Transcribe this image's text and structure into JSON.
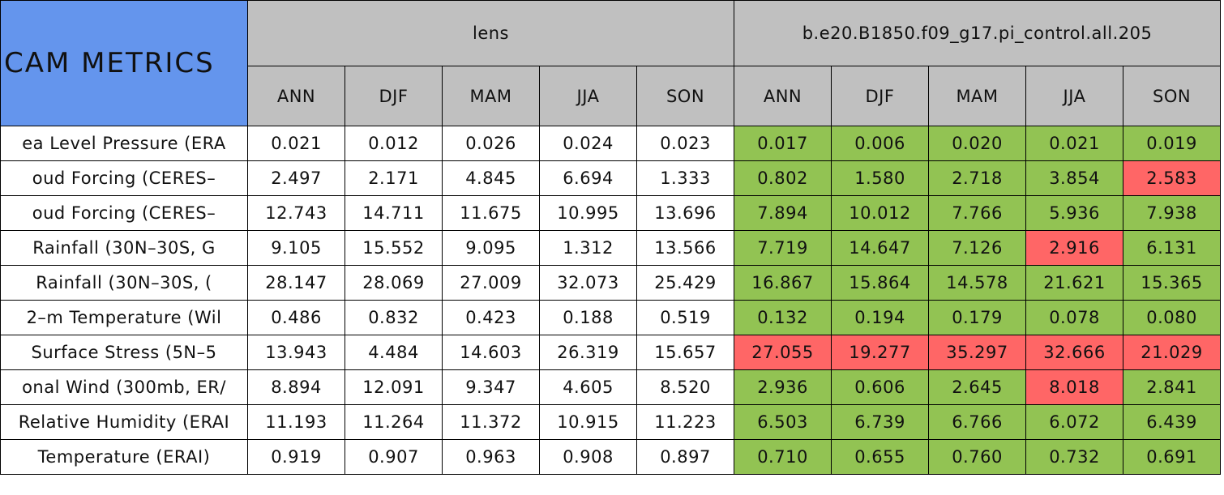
{
  "header": {
    "title": "CAM METRICS",
    "groups": [
      "lens",
      "b.e20.B1850.f09_g17.pi_control.all.205"
    ],
    "seasons": [
      "ANN",
      "DJF",
      "MAM",
      "JJA",
      "SON"
    ]
  },
  "colors": {
    "title_bg": "#6495ed",
    "header_bg": "#c0c0c0",
    "better": "#92c353",
    "worse": "#ff6666",
    "plain": "#ffffff"
  },
  "table": {
    "rows": [
      {
        "label": "ea Level Pressure (ERA",
        "lens": [
          "0.021",
          "0.012",
          "0.026",
          "0.024",
          "0.023"
        ],
        "control": [
          "0.017",
          "0.006",
          "0.020",
          "0.021",
          "0.019"
        ],
        "status": [
          "better",
          "better",
          "better",
          "better",
          "better"
        ]
      },
      {
        "label": "oud Forcing (CERES–",
        "lens": [
          "2.497",
          "2.171",
          "4.845",
          "6.694",
          "1.333"
        ],
        "control": [
          "0.802",
          "1.580",
          "2.718",
          "3.854",
          "2.583"
        ],
        "status": [
          "better",
          "better",
          "better",
          "better",
          "worse"
        ]
      },
      {
        "label": "oud Forcing (CERES–",
        "lens": [
          "12.743",
          "14.711",
          "11.675",
          "10.995",
          "13.696"
        ],
        "control": [
          "7.894",
          "10.012",
          "7.766",
          "5.936",
          "7.938"
        ],
        "status": [
          "better",
          "better",
          "better",
          "better",
          "better"
        ]
      },
      {
        "label": "Rainfall (30N–30S, G",
        "lens": [
          "9.105",
          "15.552",
          "9.095",
          "1.312",
          "13.566"
        ],
        "control": [
          "7.719",
          "14.647",
          "7.126",
          "2.916",
          "6.131"
        ],
        "status": [
          "better",
          "better",
          "better",
          "worse",
          "better"
        ]
      },
      {
        "label": "Rainfall (30N–30S, (",
        "lens": [
          "28.147",
          "28.069",
          "27.009",
          "32.073",
          "25.429"
        ],
        "control": [
          "16.867",
          "15.864",
          "14.578",
          "21.621",
          "15.365"
        ],
        "status": [
          "better",
          "better",
          "better",
          "better",
          "better"
        ]
      },
      {
        "label": "2–m Temperature (Wil",
        "lens": [
          "0.486",
          "0.832",
          "0.423",
          "0.188",
          "0.519"
        ],
        "control": [
          "0.132",
          "0.194",
          "0.179",
          "0.078",
          "0.080"
        ],
        "status": [
          "better",
          "better",
          "better",
          "better",
          "better"
        ]
      },
      {
        "label": "Surface Stress (5N–5",
        "lens": [
          "13.943",
          "4.484",
          "14.603",
          "26.319",
          "15.657"
        ],
        "control": [
          "27.055",
          "19.277",
          "35.297",
          "32.666",
          "21.029"
        ],
        "status": [
          "worse",
          "worse",
          "worse",
          "worse",
          "worse"
        ]
      },
      {
        "label": "onal Wind (300mb, ER/",
        "lens": [
          "8.894",
          "12.091",
          "9.347",
          "4.605",
          "8.520"
        ],
        "control": [
          "2.936",
          "0.606",
          "2.645",
          "8.018",
          "2.841"
        ],
        "status": [
          "better",
          "better",
          "better",
          "worse",
          "better"
        ]
      },
      {
        "label": "Relative Humidity (ERAI",
        "lens": [
          "11.193",
          "11.264",
          "11.372",
          "10.915",
          "11.223"
        ],
        "control": [
          "6.503",
          "6.739",
          "6.766",
          "6.072",
          "6.439"
        ],
        "status": [
          "better",
          "better",
          "better",
          "better",
          "better"
        ]
      },
      {
        "label": "Temperature (ERAI)",
        "lens": [
          "0.919",
          "0.907",
          "0.963",
          "0.908",
          "0.897"
        ],
        "control": [
          "0.710",
          "0.655",
          "0.760",
          "0.732",
          "0.691"
        ],
        "status": [
          "better",
          "better",
          "better",
          "better",
          "better"
        ]
      }
    ]
  }
}
